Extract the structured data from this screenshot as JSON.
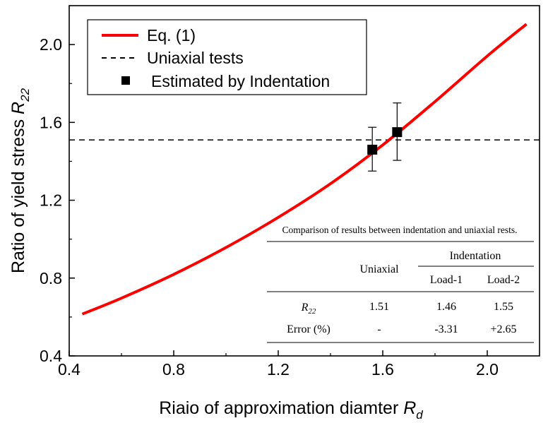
{
  "chart_data": {
    "type": "line",
    "xlabel": "Riaio of approximation diamter",
    "xlabel_symbol": "R",
    "xlabel_sub": "d",
    "ylabel": "Ratio of yield stress",
    "ylabel_symbol": "R",
    "ylabel_sub": "22",
    "xlim": [
      0.4,
      2.2
    ],
    "ylim": [
      0.4,
      2.2
    ],
    "x_ticks": [
      0.4,
      0.8,
      1.2,
      1.6,
      2.0
    ],
    "x_tick_labels": [
      "0.4",
      "0.8",
      "1.2",
      "1.6",
      "2.0"
    ],
    "y_ticks": [
      0.4,
      0.8,
      1.2,
      1.6,
      2.0
    ],
    "y_tick_labels": [
      "0.4",
      "0.8",
      "1.2",
      "1.6",
      "2.0"
    ],
    "grid": false,
    "legend_position": "top-left",
    "series": [
      {
        "name": "Eq. (1)",
        "style": "solid-line",
        "color": "#ff0000",
        "x": [
          0.45,
          0.6,
          0.8,
          1.0,
          1.2,
          1.4,
          1.6,
          1.8,
          2.0,
          2.15
        ],
        "y": [
          0.615,
          0.697,
          0.819,
          0.957,
          1.112,
          1.285,
          1.484,
          1.707,
          1.941,
          2.105
        ]
      },
      {
        "name": "Uniaxial tests",
        "style": "dashed-line",
        "color": "#000000",
        "y_constant": 1.51
      },
      {
        "name": "Estimated by Indentation",
        "style": "square-markers-with-error-bars",
        "color": "#000000",
        "x": [
          1.56,
          1.655
        ],
        "y": [
          1.46,
          1.55
        ],
        "y_err_low": [
          1.35,
          1.405
        ],
        "y_err_high": [
          1.575,
          1.7
        ]
      }
    ],
    "inset_table": {
      "caption": "Comparison of results between indentation and uniaxial rests.",
      "col_uniaxial": "Uniaxial",
      "col_indentation": "Indentation",
      "col_load1": "Load-1",
      "col_load2": "Load-2",
      "row1_label_symbol": "R",
      "row1_label_sub": "22",
      "row1_values": [
        "1.51",
        "1.46",
        "1.55"
      ],
      "row2_label": "Error (%)",
      "row2_values": [
        "-",
        "-3.31",
        "+2.65"
      ]
    }
  }
}
